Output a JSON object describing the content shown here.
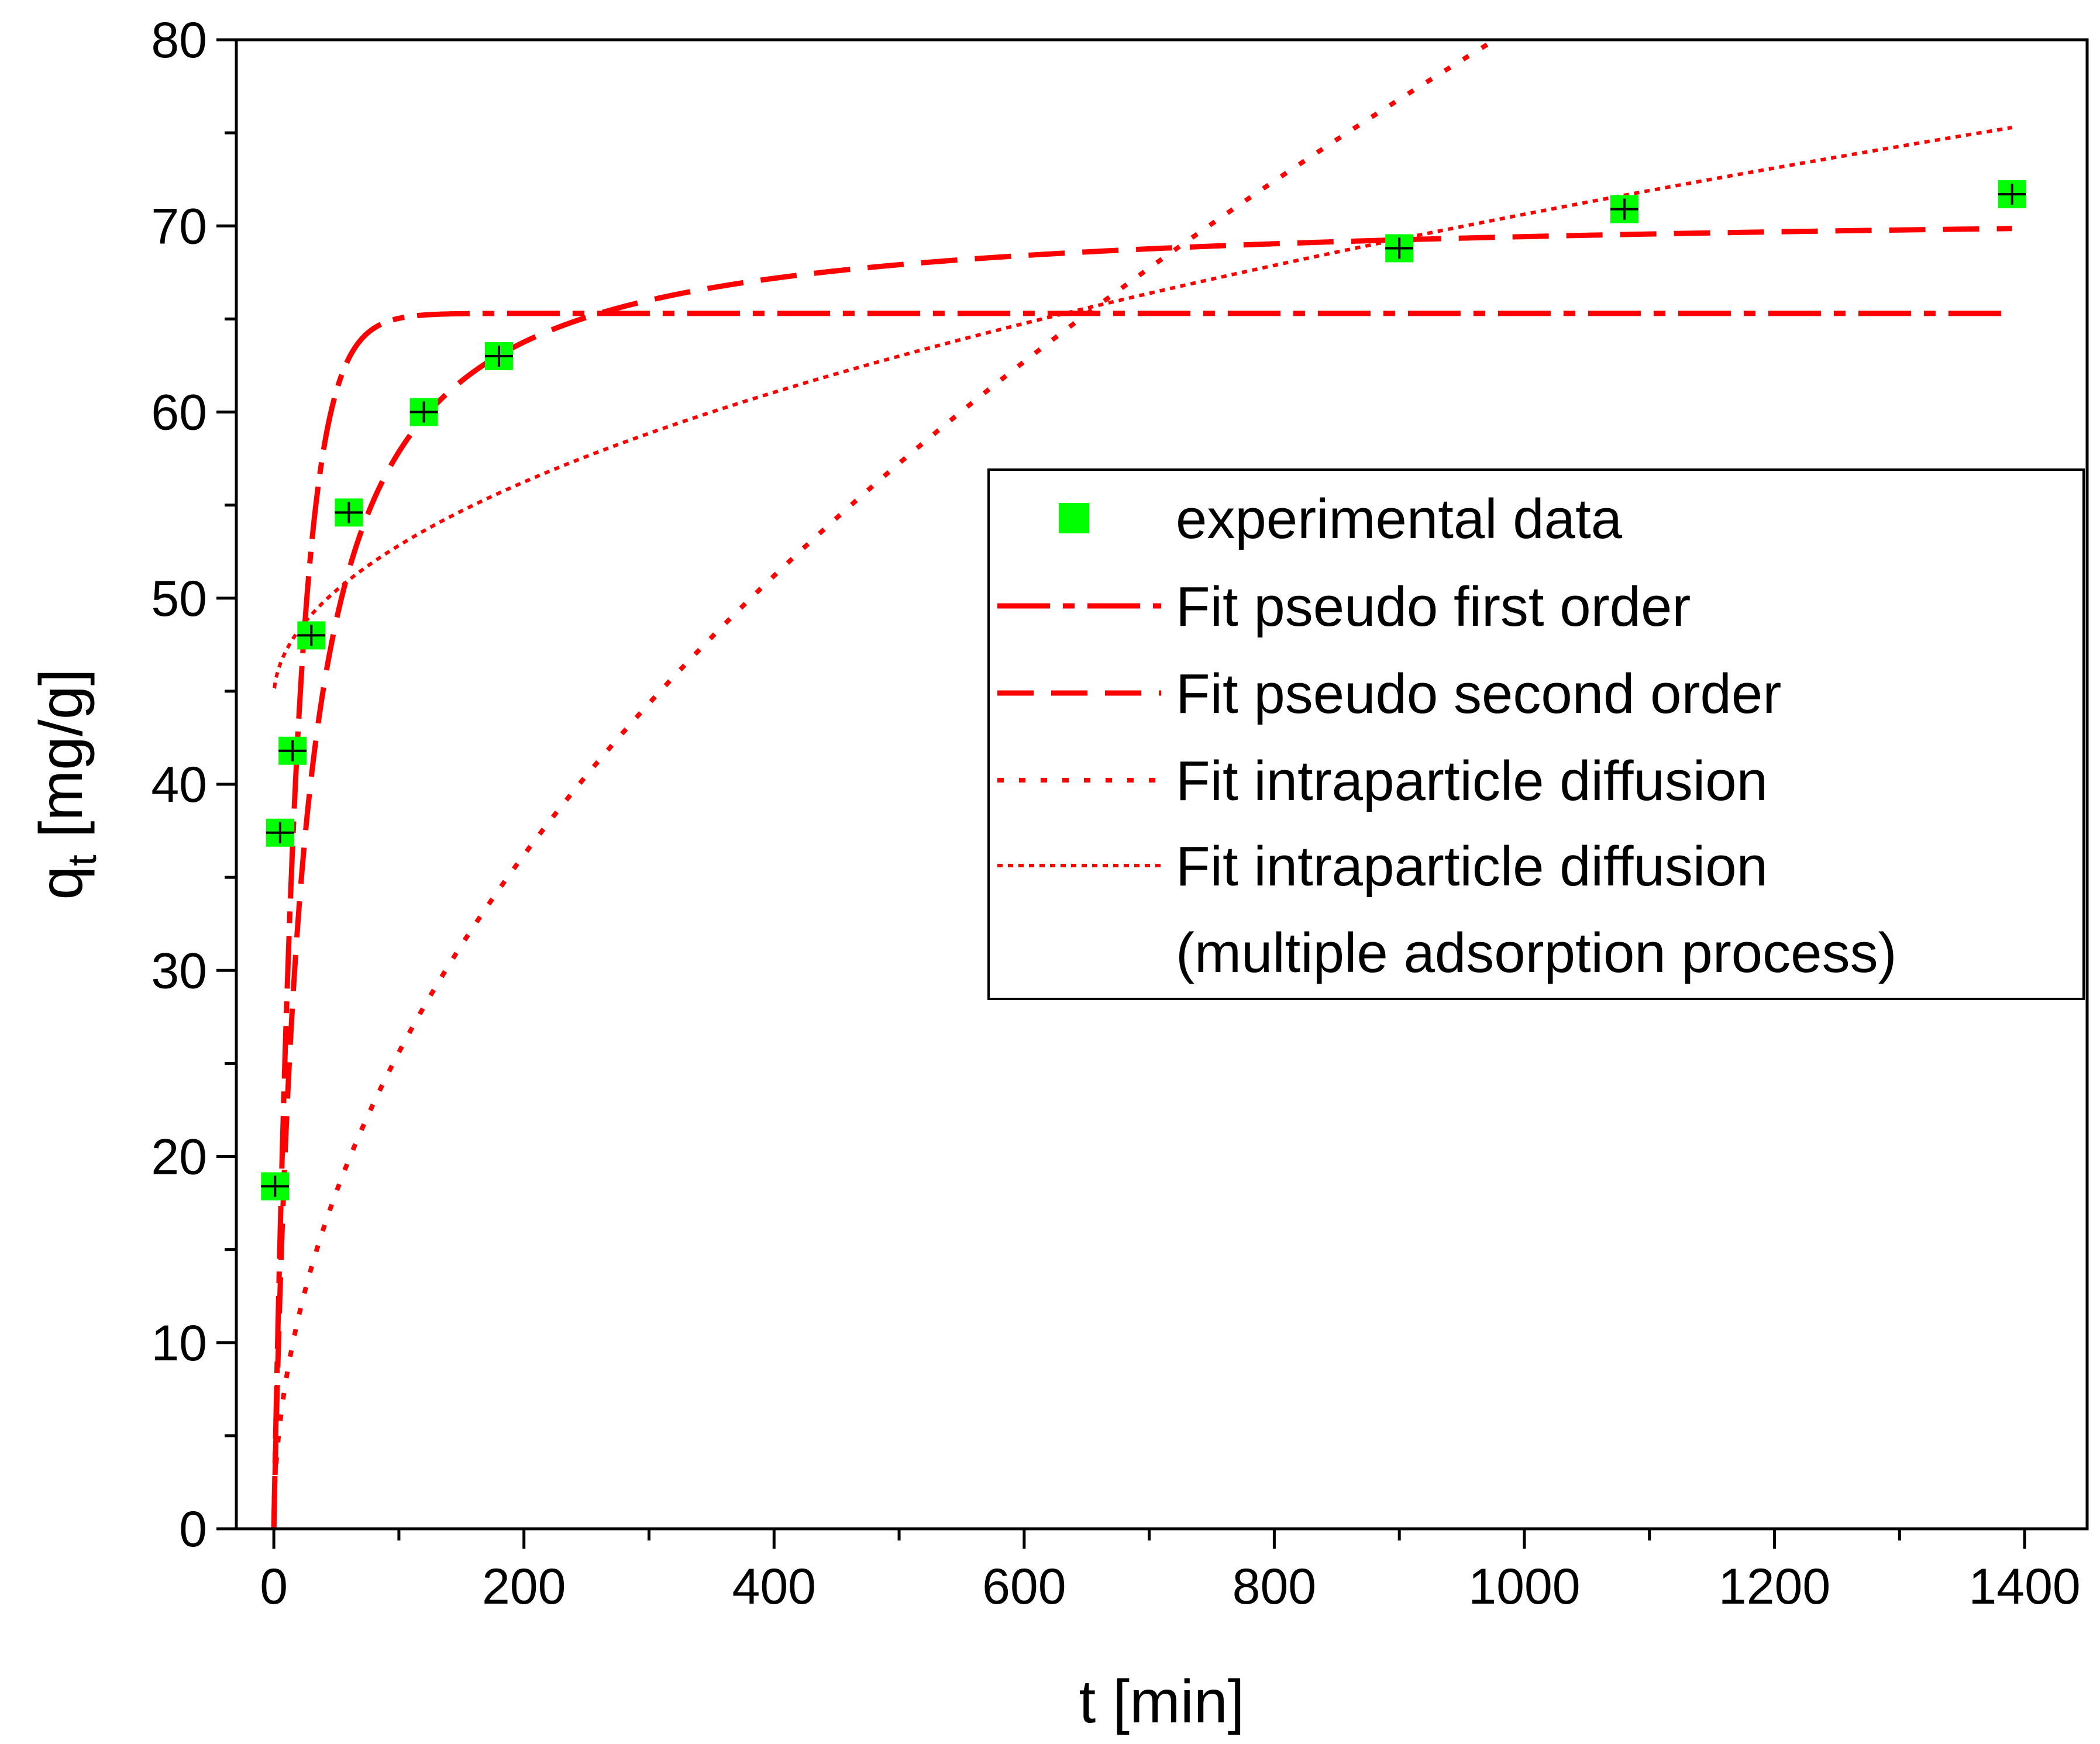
{
  "chart_data": {
    "type": "scatter",
    "title": "",
    "xlabel": "t [min]",
    "ylabel": {
      "main": "q",
      "sub": "t",
      "unit": " [mg/g]"
    },
    "xlim": [
      -30,
      1450
    ],
    "ylim": [
      0,
      80
    ],
    "x_ticks": [
      0,
      200,
      400,
      600,
      800,
      1000,
      1200,
      1400
    ],
    "y_ticks": [
      0,
      10,
      20,
      30,
      40,
      50,
      60,
      70,
      80
    ],
    "grid": false,
    "legend_position": "right",
    "colors": {
      "marker": "#00ff00",
      "fit": "#ff0000",
      "axis": "#000000"
    },
    "series": [
      {
        "name": "experimental data",
        "kind": "markers",
        "x": [
          1,
          5,
          15,
          30,
          60,
          120,
          180,
          900,
          1080,
          1390
        ],
        "y": [
          18.4,
          37.4,
          41.8,
          48.0,
          54.6,
          60.0,
          63.0,
          68.8,
          70.9,
          71.7
        ]
      },
      {
        "name": "Fit pseudo first order",
        "kind": "line",
        "style": "dashdot",
        "model": {
          "type": "pfo",
          "qe": 65.3,
          "k": 0.055
        },
        "x_range": [
          0,
          1390
        ]
      },
      {
        "name": "Fit pseudo second order",
        "kind": "line",
        "style": "dash",
        "model": {
          "type": "pso",
          "qe": 71.0,
          "k": 0.00062
        },
        "x_range": [
          0,
          1390
        ]
      },
      {
        "name": "Fit intraparticle diffusion",
        "kind": "line",
        "style": "dot",
        "model": {
          "type": "ipd",
          "k": 2.56,
          "c": 0
        },
        "x_range": [
          0,
          985
        ]
      },
      {
        "name": "Fit intraparticle diffusion",
        "name_line2": "(multiple adsorption process)",
        "kind": "line",
        "style": "finedot",
        "model": {
          "type": "ipd",
          "k": 0.823,
          "c": 44.6
        },
        "x_range": [
          0.5,
          1390
        ]
      }
    ]
  }
}
